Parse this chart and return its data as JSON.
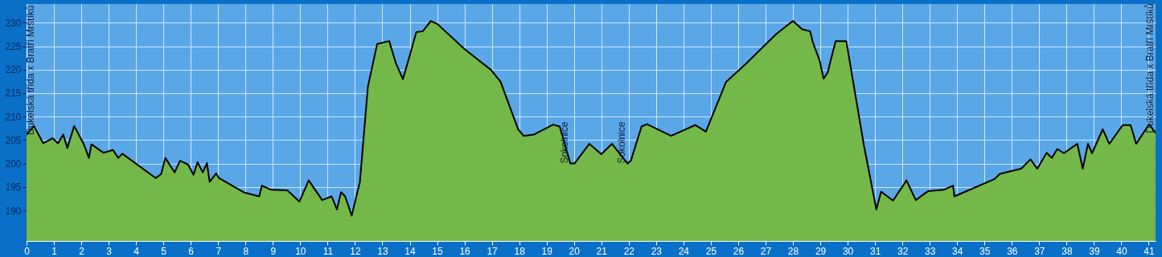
{
  "chart_data": {
    "type": "area",
    "x": [
      0,
      0.27,
      0.61,
      0.95,
      1.15,
      1.34,
      1.49,
      1.74,
      2.08,
      2.28,
      2.37,
      2.81,
      3.16,
      3.35,
      3.5,
      4.72,
      4.92,
      5.07,
      5.41,
      5.61,
      5.9,
      6.1,
      6.25,
      6.44,
      6.59,
      6.69,
      6.93,
      7.03,
      7.96,
      8.5,
      8.6,
      8.94,
      9.53,
      9.97,
      10.31,
      10.8,
      11.15,
      11.34,
      11.49,
      11.64,
      11.88,
      12.18,
      12.47,
      12.81,
      13.25,
      13.5,
      13.75,
      14.0,
      14.24,
      14.48,
      14.77,
      15.02,
      16.0,
      16.98,
      17.32,
      17.96,
      18.16,
      18.55,
      19.24,
      19.48,
      19.87,
      20.02,
      20.56,
      21.0,
      21.39,
      21.96,
      22.08,
      22.47,
      22.67,
      23.55,
      24.43,
      24.82,
      25.56,
      26.29,
      27.37,
      28.0,
      28.34,
      28.63,
      28.73,
      28.98,
      29.12,
      29.27,
      29.56,
      29.95,
      30.59,
      31.05,
      31.22,
      31.66,
      32.15,
      32.49,
      32.93,
      33.51,
      33.85,
      33.9,
      35.37,
      35.56,
      36.34,
      36.68,
      36.93,
      37.27,
      37.46,
      37.66,
      37.9,
      38.39,
      38.59,
      38.78,
      38.93,
      39.32,
      39.56,
      40.05,
      40.34,
      40.54,
      41.02,
      41.25
    ],
    "series": [
      {
        "color": "#74b84a",
        "values": [
          206.1,
          208,
          204.3,
          205.4,
          204.3,
          206.2,
          203.3,
          208,
          204.3,
          201.2,
          204.1,
          202.3,
          202.9,
          201.2,
          202.1,
          196.9,
          197.8,
          201.2,
          198.1,
          200.6,
          199.8,
          197.6,
          200.3,
          198.1,
          200.1,
          196.1,
          197.9,
          196.9,
          193.8,
          193,
          195.3,
          194.4,
          194.3,
          191.9,
          196.4,
          192.2,
          193,
          190.2,
          193.9,
          193,
          188.9,
          196.1,
          216.3,
          225.5,
          226.1,
          221.3,
          218,
          223,
          228,
          228.2,
          230.4,
          229.7,
          224.4,
          219.9,
          217.4,
          207.3,
          205.9,
          206.2,
          208.3,
          207.9,
          200,
          200,
          204.2,
          202,
          204.2,
          200,
          200.6,
          207.9,
          208.4,
          205.9,
          208.2,
          206.8,
          217.4,
          221.3,
          227.5,
          230.4,
          228.6,
          228.2,
          225.8,
          221.9,
          218.1,
          219.4,
          226.1,
          226.1,
          204,
          190.2,
          194,
          192.1,
          196.4,
          192.2,
          194.1,
          194.4,
          195.3,
          193,
          196.7,
          197.8,
          198.9,
          200.9,
          198.9,
          202.3,
          201.2,
          203.1,
          202.2,
          204.2,
          198.9,
          204.2,
          202.2,
          207.3,
          204.2,
          208.2,
          208.2,
          204.2,
          208.4,
          206.5
        ]
      }
    ],
    "xlim": [
      0,
      41.25
    ],
    "xticks": [
      0,
      1,
      2,
      3,
      4,
      5,
      6,
      7,
      8,
      9,
      10,
      11,
      12,
      13,
      14,
      15,
      16,
      17,
      18,
      19,
      20,
      21,
      22,
      23,
      24,
      25,
      26,
      27,
      28,
      29,
      30,
      31,
      32,
      33,
      34,
      35,
      36,
      37,
      38,
      39,
      40,
      41
    ],
    "ylim": [
      183.5,
      234
    ],
    "yticks": [
      190,
      195,
      200,
      205,
      210,
      215,
      220,
      225,
      230
    ],
    "grid": true,
    "marker": "none",
    "line_style": "solid",
    "annotations": [
      {
        "text": "Dukelská třída x Bratří Mrštíků",
        "x": 0,
        "y": 206.1
      },
      {
        "text": "Sokolnice",
        "x": 19.87,
        "y": 200
      },
      {
        "text": "Sokolnice",
        "x": 21.96,
        "y": 200
      },
      {
        "text": "Dukelská třída x Bratří Mrštíků",
        "x": 41.25,
        "y": 206.5
      }
    ]
  }
}
